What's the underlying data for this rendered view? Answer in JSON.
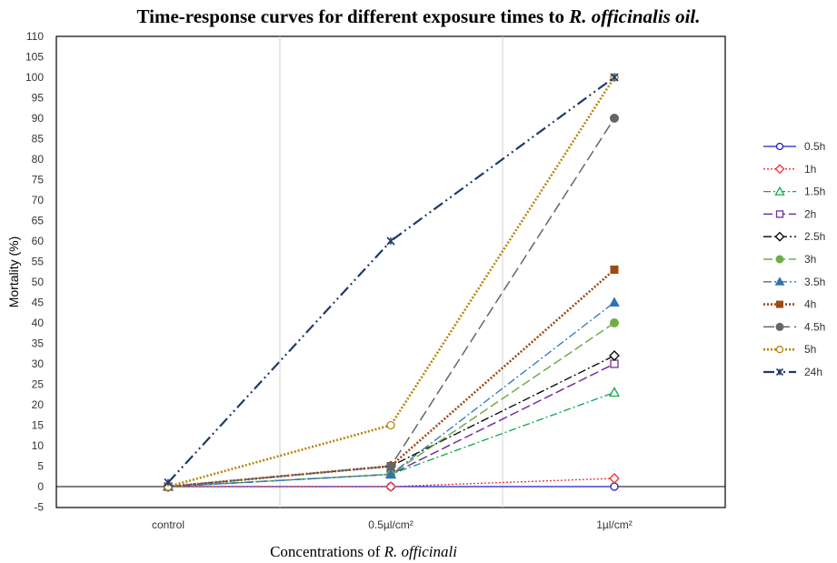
{
  "chart_data": {
    "type": "line",
    "title_main": "Time-response curves for different exposure times to ",
    "title_italic": "R. officinalis oil.",
    "xlabel_main": "Concentrations of ",
    "xlabel_italic": "R. officinali",
    "ylabel": "Mortality (%)",
    "categories": [
      "control",
      "0.5µl/cm²",
      "1µl/cm²"
    ],
    "ylim": [
      -5,
      110
    ],
    "yticks": [
      -5,
      0,
      5,
      10,
      15,
      20,
      25,
      30,
      35,
      40,
      45,
      50,
      55,
      60,
      65,
      70,
      75,
      80,
      85,
      90,
      95,
      100,
      105,
      110
    ],
    "grid": "vertical",
    "legend_position": "right",
    "series": [
      {
        "name": "0.5h",
        "values": [
          0,
          0,
          0
        ],
        "color": "#1f1fd0",
        "dash": "",
        "marker": "circle-open",
        "width": 1.3
      },
      {
        "name": "1h",
        "values": [
          0,
          0,
          2
        ],
        "color": "#e8302c",
        "dash": "2,2",
        "marker": "diamond-open",
        "width": 1.3
      },
      {
        "name": "1.5h",
        "values": [
          0,
          3,
          23
        ],
        "color": "#10a850",
        "dash": "8,3,2,3",
        "marker": "triangle-open",
        "width": 1.3
      },
      {
        "name": "2h",
        "values": [
          0,
          3,
          30
        ],
        "color": "#7030a0",
        "dash": "10,4",
        "marker": "square-open",
        "width": 1.5
      },
      {
        "name": "2.5h",
        "values": [
          0,
          5,
          32
        ],
        "color": "#000000",
        "dash": "9,3,2,3",
        "marker": "diamond-open",
        "width": 1.3
      },
      {
        "name": "3h",
        "values": [
          0,
          3,
          40
        ],
        "color": "#70ad47",
        "dash": "10,4",
        "marker": "circle",
        "width": 1.5
      },
      {
        "name": "3.5h",
        "values": [
          0,
          3,
          45
        ],
        "color": "#2e75b6",
        "dash": "9,3,2,3",
        "marker": "triangle",
        "width": 1.3
      },
      {
        "name": "4h",
        "values": [
          0,
          5,
          53
        ],
        "color": "#9e4a14",
        "dash": "2,2",
        "marker": "square",
        "width": 2.6
      },
      {
        "name": "4.5h",
        "values": [
          0,
          5,
          90
        ],
        "color": "#666666",
        "dash": "12,5",
        "marker": "circle",
        "width": 1.5
      },
      {
        "name": "5h",
        "values": [
          0,
          15,
          100
        ],
        "color": "#b8860b",
        "dash": "2,2",
        "marker": "circle-open",
        "width": 2.6
      },
      {
        "name": "24h",
        "values": [
          1,
          60,
          100
        ],
        "color": "#1f3a68",
        "dash": "12,4,2,4,2,4",
        "marker": "star",
        "width": 2.2
      }
    ]
  }
}
